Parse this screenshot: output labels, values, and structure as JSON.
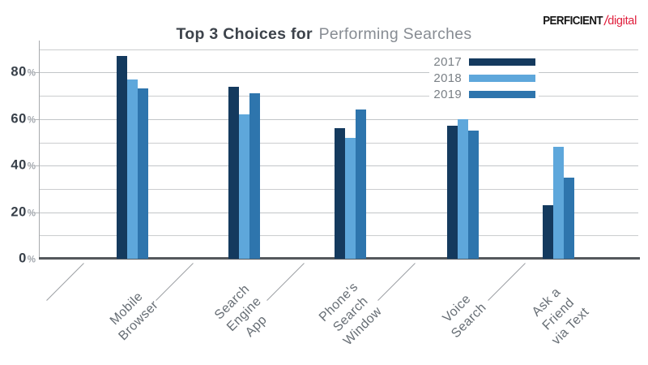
{
  "logo": {
    "brand": "PERFICIENT",
    "divider": "/",
    "suffix": "digital",
    "brand_color": "#151515",
    "accent_color": "#e01e3c"
  },
  "title": {
    "bold": "Top 3 Choices for",
    "regular": "Performing Searches"
  },
  "chart_data": {
    "type": "bar",
    "title": "Top 3 Choices for Performing Searches",
    "categories": [
      "Mobile Browser",
      "Search Engine App",
      "Phone's Search Window",
      "Voice Search",
      "Ask a Friend via Text"
    ],
    "categories_lines": [
      [
        "Mobile",
        "Browser"
      ],
      [
        "Search",
        "Engine",
        "App"
      ],
      [
        "Phone's",
        "Search",
        "Window"
      ],
      [
        "Voice",
        "Search"
      ],
      [
        "Ask a",
        "Friend",
        "via Text"
      ]
    ],
    "series": [
      {
        "name": "2017",
        "color": "#143a5e",
        "values": [
          87,
          74,
          56,
          57,
          23
        ]
      },
      {
        "name": "2018",
        "color": "#5ea7db",
        "values": [
          77,
          62,
          52,
          60,
          48
        ]
      },
      {
        "name": "2019",
        "color": "#2e75ad",
        "values": [
          73,
          71,
          64,
          55,
          35
        ]
      }
    ],
    "xlabel": "",
    "ylabel": "",
    "ylim": [
      0,
      90
    ],
    "yticks": [
      0,
      20,
      40,
      60,
      80
    ],
    "ytick_suffix": "%",
    "grid": true,
    "gridline_step": 10,
    "legend_position": "top-right-inside"
  }
}
